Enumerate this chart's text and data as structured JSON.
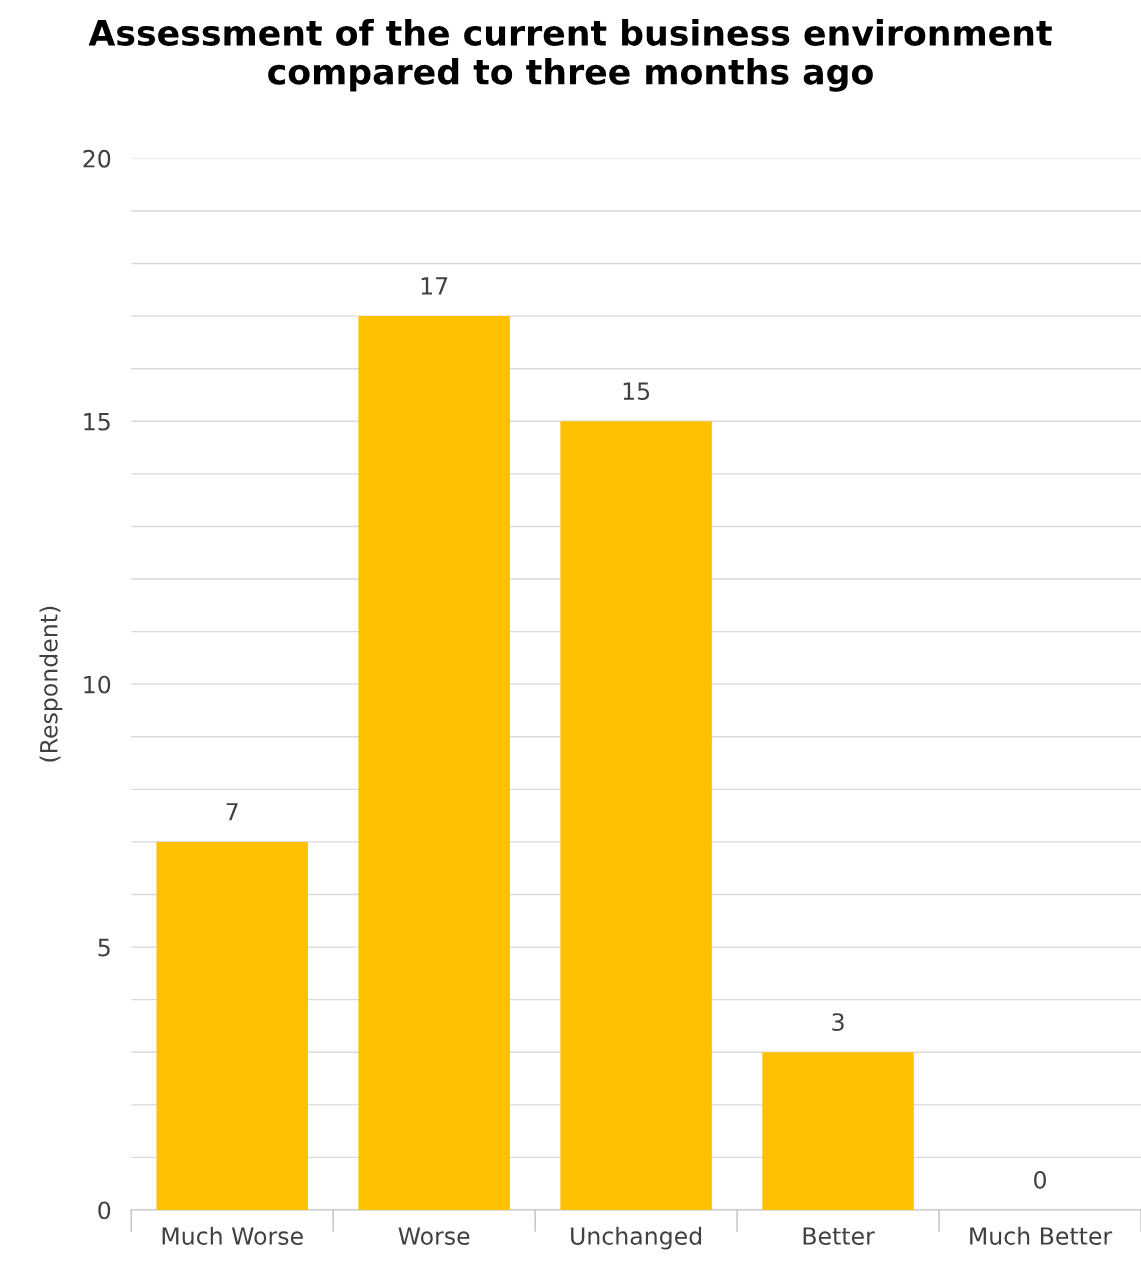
{
  "chart_data": {
    "type": "bar",
    "title": "Assessment of the current business environment compared to three months ago",
    "ylabel": "(Respondent)",
    "categories": [
      "Much Worse",
      "Worse",
      "Unchanged",
      "Better",
      "Much Better"
    ],
    "values": [
      7,
      17,
      15,
      3,
      0
    ],
    "color": "#ffc000",
    "data_labels": true,
    "ylim": [
      0,
      20
    ],
    "yticks": [
      0,
      {
        "value": 1,
        "label": null
      },
      {
        "value": 2,
        "label": null
      },
      {
        "value": 3,
        "label": null
      },
      {
        "value": 4,
        "label": null
      },
      5,
      {
        "value": 6,
        "label": null
      },
      {
        "value": 7,
        "label": null
      },
      {
        "value": 8,
        "label": null
      },
      {
        "value": 9,
        "label": null
      },
      10,
      {
        "value": 11,
        "label": null
      },
      {
        "value": 12,
        "label": null
      },
      {
        "value": 13,
        "label": null
      },
      {
        "value": 14,
        "label": null
      },
      15,
      {
        "value": 16,
        "label": null
      },
      {
        "value": 17,
        "label": null
      },
      {
        "value": 18,
        "label": null
      },
      {
        "value": 19,
        "label": null
      },
      20
    ],
    "grid": "y",
    "legend": false
  }
}
